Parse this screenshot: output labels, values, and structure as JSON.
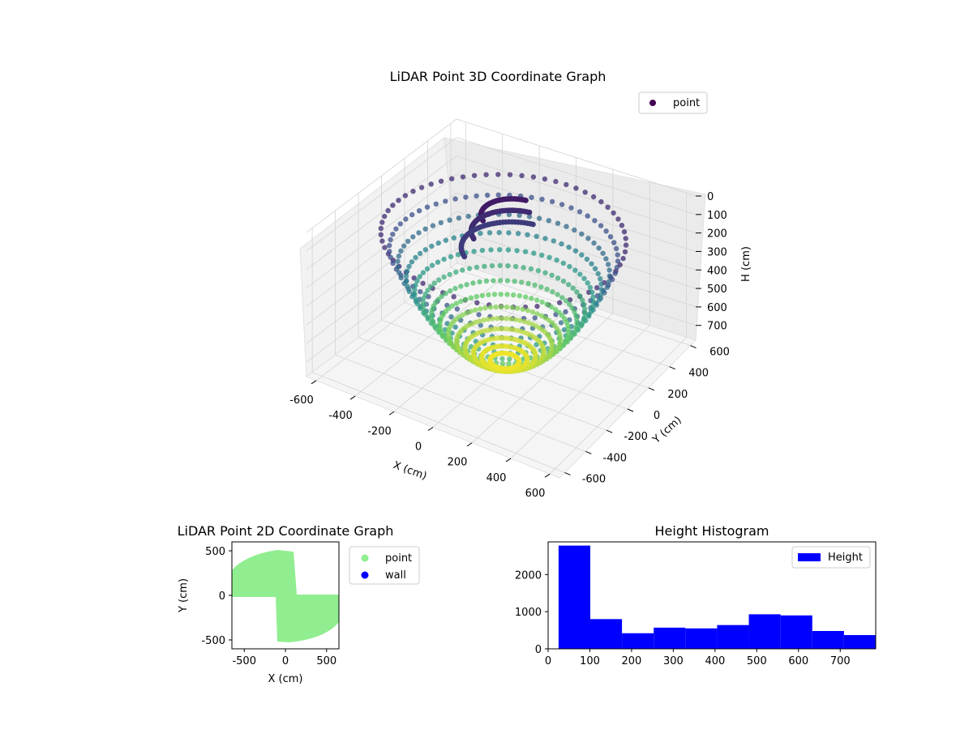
{
  "figure": {
    "background": "#ffffff"
  },
  "chart_data": [
    {
      "id": "scatter3d",
      "type": "scatter",
      "title": "LiDAR Point 3D Coordinate Graph",
      "xlabel": "X (cm)",
      "ylabel": "Y (cm)",
      "zlabel": "H (cm)",
      "x_ticks": [
        -600,
        -400,
        -200,
        0,
        200,
        400,
        600
      ],
      "y_ticks": [
        -600,
        -400,
        -200,
        0,
        200,
        400,
        600
      ],
      "z_ticks": [
        0,
        100,
        200,
        300,
        400,
        500,
        600,
        700
      ],
      "xlim": [
        -650,
        650
      ],
      "ylim": [
        -650,
        650
      ],
      "zlim": [
        0,
        780
      ],
      "z_inverted": true,
      "colormap": "viridis",
      "legend": [
        {
          "label": "point",
          "color": "#440154"
        }
      ],
      "legend_position": "top-right",
      "grid": true
    },
    {
      "id": "scatter2d",
      "type": "scatter",
      "title": "LiDAR Point 2D Coordinate Graph",
      "xlabel": "X (cm)",
      "ylabel": "Y (cm)",
      "x_ticks": [
        -500,
        0,
        500
      ],
      "y_ticks": [
        -500,
        0,
        500
      ],
      "xlim": [
        -650,
        650
      ],
      "ylim": [
        -600,
        600
      ],
      "series": [
        {
          "name": "point",
          "color": "#90ee90"
        },
        {
          "name": "wall",
          "color": "#0000ff"
        }
      ],
      "legend_position": "outside-right"
    },
    {
      "id": "histogram",
      "type": "bar",
      "title": "Height Histogram",
      "xlabel": "",
      "ylabel": "",
      "bin_edges": [
        25,
        101,
        177,
        253,
        329,
        405,
        481,
        557,
        633,
        709,
        785
      ],
      "values": [
        2780,
        800,
        420,
        570,
        550,
        640,
        930,
        900,
        480,
        370
      ],
      "x_ticks": [
        0,
        100,
        200,
        300,
        400,
        500,
        600,
        700
      ],
      "y_ticks": [
        0,
        1000,
        2000
      ],
      "xlim": [
        0,
        785
      ],
      "ylim": [
        0,
        2880
      ],
      "color": "#0000ff",
      "legend": [
        {
          "label": "Height",
          "color": "#0000ff"
        }
      ],
      "legend_position": "top-right"
    }
  ]
}
